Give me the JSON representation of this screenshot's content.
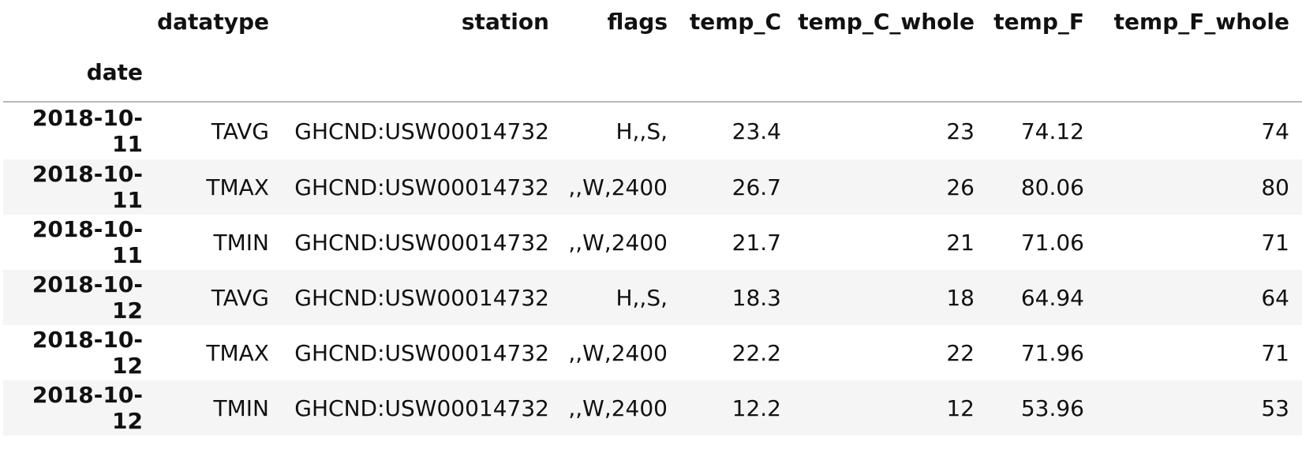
{
  "table": {
    "columns": [
      "datatype",
      "station",
      "flags",
      "temp_C",
      "temp_C_whole",
      "temp_F",
      "temp_F_whole"
    ],
    "index_name": "date",
    "rows": [
      {
        "date": "2018-10-11",
        "datatype": "TAVG",
        "station": "GHCND:USW00014732",
        "flags": "H,,S,",
        "temp_C": "23.4",
        "temp_C_whole": "23",
        "temp_F": "74.12",
        "temp_F_whole": "74"
      },
      {
        "date": "2018-10-11",
        "datatype": "TMAX",
        "station": "GHCND:USW00014732",
        "flags": ",,W,2400",
        "temp_C": "26.7",
        "temp_C_whole": "26",
        "temp_F": "80.06",
        "temp_F_whole": "80"
      },
      {
        "date": "2018-10-11",
        "datatype": "TMIN",
        "station": "GHCND:USW00014732",
        "flags": ",,W,2400",
        "temp_C": "21.7",
        "temp_C_whole": "21",
        "temp_F": "71.06",
        "temp_F_whole": "71"
      },
      {
        "date": "2018-10-12",
        "datatype": "TAVG",
        "station": "GHCND:USW00014732",
        "flags": "H,,S,",
        "temp_C": "18.3",
        "temp_C_whole": "18",
        "temp_F": "64.94",
        "temp_F_whole": "64"
      },
      {
        "date": "2018-10-12",
        "datatype": "TMAX",
        "station": "GHCND:USW00014732",
        "flags": ",,W,2400",
        "temp_C": "22.2",
        "temp_C_whole": "22",
        "temp_F": "71.96",
        "temp_F_whole": "71"
      },
      {
        "date": "2018-10-12",
        "datatype": "TMIN",
        "station": "GHCND:USW00014732",
        "flags": ",,W,2400",
        "temp_C": "12.2",
        "temp_C_whole": "12",
        "temp_F": "53.96",
        "temp_F_whole": "53"
      }
    ]
  }
}
